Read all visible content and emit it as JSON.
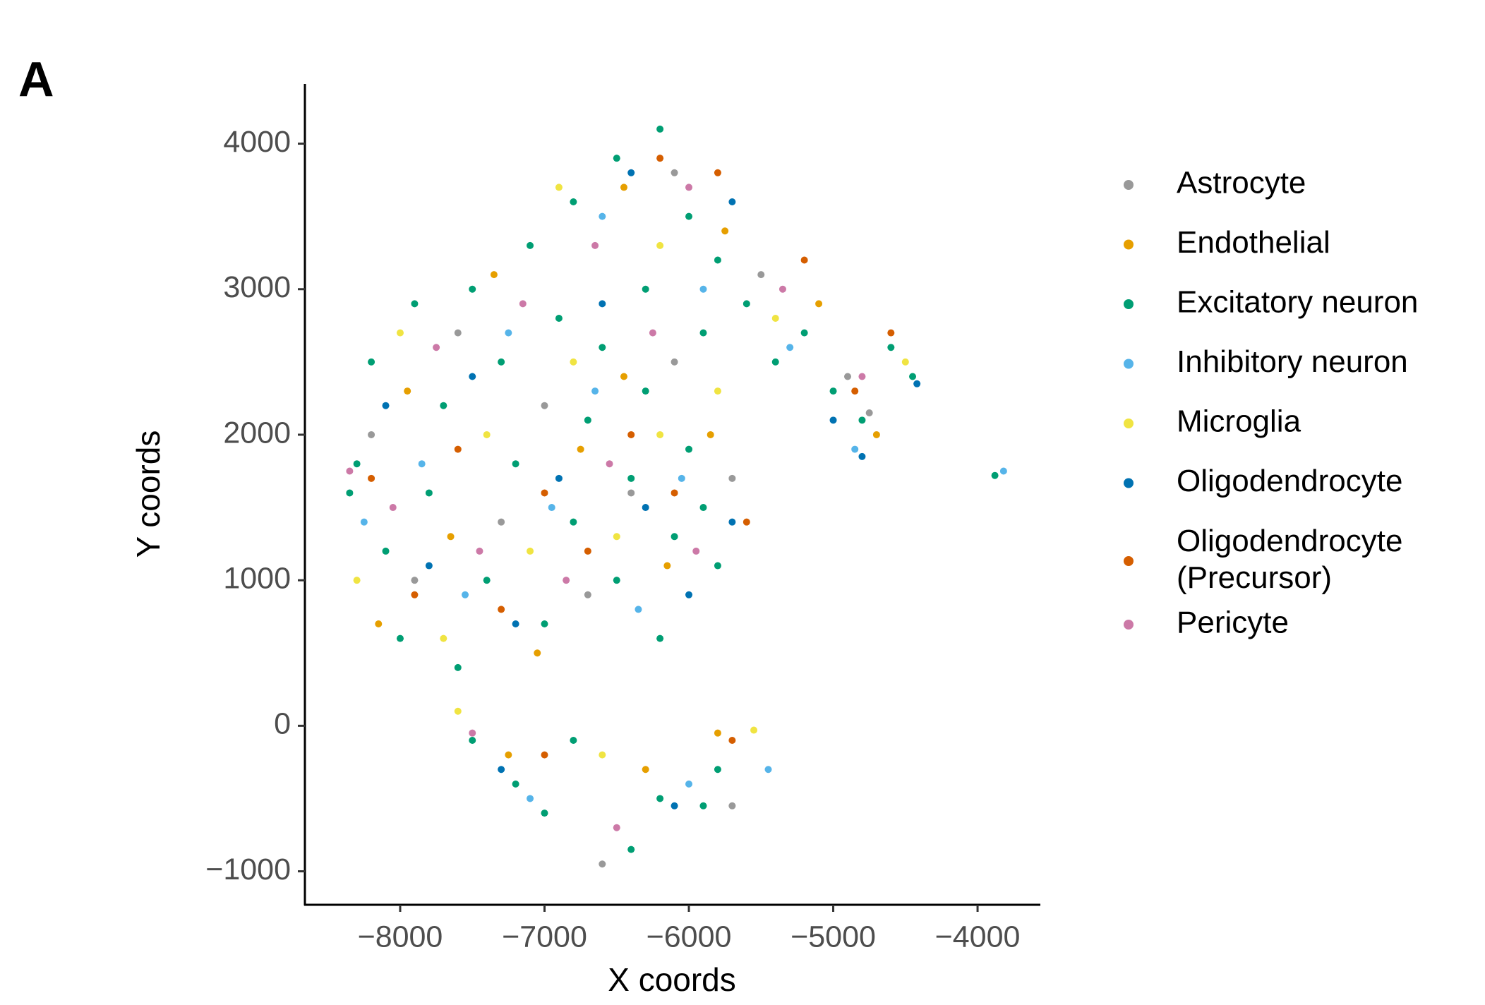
{
  "panel_label": "A",
  "chart_data": {
    "type": "scatter",
    "x_label": "X coords",
    "y_label": "Y coords",
    "xlim": [
      -8660,
      -3570
    ],
    "ylim": [
      -1230,
      4410
    ],
    "xticks": [
      {
        "value": -8000,
        "label": "−8000"
      },
      {
        "value": -7000,
        "label": "−7000"
      },
      {
        "value": -6000,
        "label": "−6000"
      },
      {
        "value": -5000,
        "label": "−5000"
      },
      {
        "value": -4000,
        "label": "−4000"
      }
    ],
    "yticks": [
      {
        "value": -1000,
        "label": "−1000"
      },
      0,
      1000,
      2000,
      3000,
      4000
    ],
    "grid": false,
    "legend": "right",
    "series": [
      {
        "name": "Astrocyte",
        "color": "#999999",
        "x": [
          -8200,
          -7900,
          -7600,
          -7300,
          -7000,
          -6700,
          -6400,
          -6100,
          -5700,
          -6600,
          -5700,
          -6100,
          -5500,
          -4750,
          -4900
        ],
        "values": [
          2000,
          1000,
          2700,
          1400,
          2200,
          900,
          1600,
          2500,
          1700,
          -950,
          -550,
          3800,
          3100,
          2150,
          2400
        ]
      },
      {
        "name": "Endothelial",
        "color": "#E69F00",
        "x": [
          -8150,
          -7950,
          -7650,
          -7350,
          -7050,
          -6750,
          -6450,
          -6150,
          -5850,
          -7250,
          -6300,
          -5800,
          -6450,
          -5750,
          -5100,
          -4700
        ],
        "values": [
          700,
          2300,
          1300,
          3100,
          500,
          1900,
          2400,
          1100,
          2000,
          -200,
          -300,
          -50,
          3700,
          3400,
          2900,
          2000
        ]
      },
      {
        "name": "Excitatory neuron",
        "color": "#009E73",
        "x": [
          -8300,
          -8200,
          -8100,
          -8000,
          -7900,
          -7800,
          -7700,
          -7600,
          -7500,
          -7400,
          -7300,
          -7200,
          -7100,
          -7000,
          -6900,
          -6800,
          -6700,
          -6600,
          -6500,
          -6400,
          -6300,
          -6200,
          -6100,
          -6000,
          -5900,
          -5800,
          -7500,
          -7200,
          -7000,
          -6800,
          -6400,
          -6200,
          -5900,
          -5800,
          -6800,
          -6500,
          -6200,
          -6000,
          -5800,
          -5600,
          -5400,
          -5200,
          -5000,
          -4800,
          -4600,
          -4450,
          -6300,
          -5900,
          -3880,
          -8350
        ],
        "values": [
          1800,
          2500,
          1200,
          600,
          2900,
          1600,
          2200,
          400,
          3000,
          1000,
          2500,
          1800,
          3300,
          700,
          2800,
          1400,
          2100,
          2600,
          1000,
          1700,
          2300,
          600,
          1300,
          1900,
          1500,
          1100,
          -100,
          -400,
          -600,
          -100,
          -850,
          -500,
          -550,
          -300,
          3600,
          3900,
          4100,
          3500,
          3200,
          2900,
          2500,
          2700,
          2300,
          2100,
          2600,
          2400,
          3000,
          2700,
          1720,
          1600
        ]
      },
      {
        "name": "Inhibitory neuron",
        "color": "#56B4E9",
        "x": [
          -8250,
          -7850,
          -7550,
          -7250,
          -6950,
          -6650,
          -6350,
          -6050,
          -7100,
          -6000,
          -5450,
          -6600,
          -5900,
          -5300,
          -4850,
          -3820
        ],
        "values": [
          1400,
          1800,
          900,
          2700,
          1500,
          2300,
          800,
          1700,
          -500,
          -400,
          -300,
          3500,
          3000,
          2600,
          1900,
          1750
        ]
      },
      {
        "name": "Microglia",
        "color": "#F0E442",
        "x": [
          -8300,
          -8000,
          -7700,
          -7400,
          -7100,
          -6800,
          -6500,
          -6200,
          -5800,
          -7600,
          -6600,
          -5550,
          -6900,
          -6200,
          -5400,
          -4500
        ],
        "values": [
          1000,
          2700,
          600,
          2000,
          1200,
          2500,
          1300,
          2000,
          2300,
          100,
          -200,
          -30,
          3700,
          3300,
          2800,
          2500
        ]
      },
      {
        "name": "Oligodendrocyte",
        "color": "#0072B2",
        "x": [
          -8100,
          -7800,
          -7500,
          -7200,
          -6900,
          -6600,
          -6300,
          -6000,
          -5700,
          -7300,
          -6100,
          -6400,
          -5700,
          -5000,
          -4800,
          -4420
        ],
        "values": [
          2200,
          1100,
          2400,
          700,
          1700,
          2900,
          1500,
          900,
          1400,
          -300,
          -550,
          3800,
          3600,
          2100,
          1850,
          2350
        ]
      },
      {
        "name": "Oligodendrocyte (Precursor)",
        "color": "#D55E00",
        "x": [
          -8200,
          -7900,
          -7600,
          -7300,
          -7000,
          -6700,
          -6400,
          -6100,
          -5600,
          -7000,
          -5700,
          -6200,
          -5800,
          -5200,
          -4850,
          -4600
        ],
        "values": [
          1700,
          900,
          1900,
          800,
          1600,
          1200,
          2000,
          1600,
          1400,
          -200,
          -100,
          3900,
          3800,
          3200,
          2300,
          2700
        ]
      },
      {
        "name": "Pericyte",
        "color": "#CC79A7",
        "x": [
          -8350,
          -8050,
          -7750,
          -7450,
          -7150,
          -6850,
          -6550,
          -6250,
          -5950,
          -7500,
          -6500,
          -6650,
          -6000,
          -5350,
          -4800
        ],
        "values": [
          1750,
          1500,
          2600,
          1200,
          2900,
          1000,
          1800,
          2700,
          1200,
          -50,
          -700,
          3300,
          3700,
          3000,
          2400
        ]
      }
    ]
  }
}
